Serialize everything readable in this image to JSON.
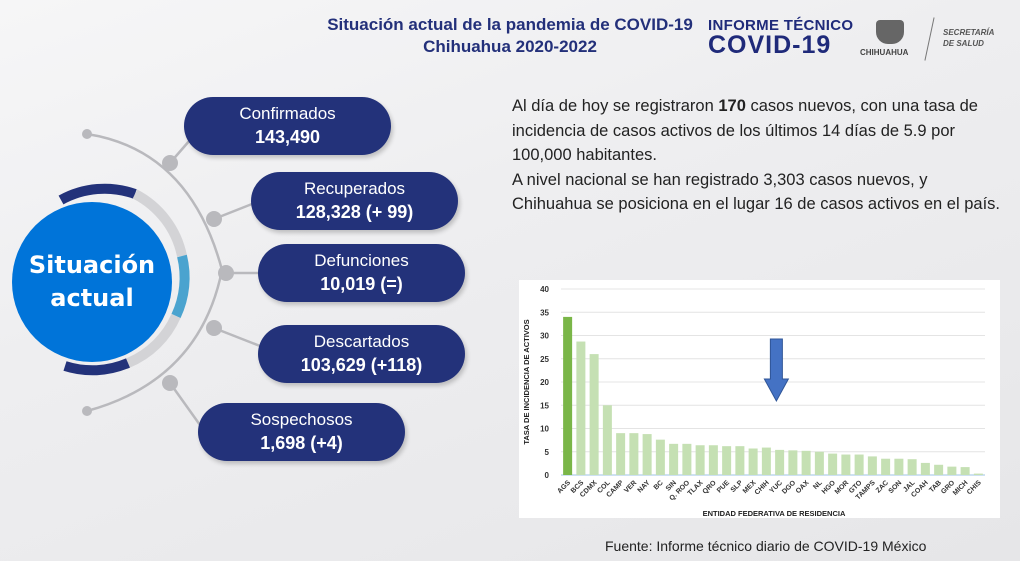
{
  "header": {
    "title_line1": "Situación actual de la pandemia de COVID-19",
    "title_line2": "Chihuahua 2020-2022",
    "logo_informe_line1": "INFORME TÉCNICO",
    "logo_informe_line2": "COVID-19",
    "logo_state": "CHIHUAHUA",
    "logo_secretaria_line1": "SECRETARÍA",
    "logo_secretaria_line2": "DE SALUD"
  },
  "situacion": {
    "title_line1": "Situación",
    "title_line2": "actual",
    "items": [
      {
        "label": "Confirmados",
        "value": "143,490"
      },
      {
        "label": "Recuperados",
        "value": "128,328 (+ 99)"
      },
      {
        "label": "Defunciones",
        "value": "10,019 (=)"
      },
      {
        "label": "Descartados",
        "value": "103,629 (+118)"
      },
      {
        "label": "Sospechosos",
        "value": "1,698 (+4)"
      }
    ]
  },
  "description": {
    "p1_pre": "Al día de hoy se registraron ",
    "p1_bold": "170",
    "p1_post": " casos nuevos, con una tasa de incidencia de casos activos de los últimos 14 días de 5.9 por 100,000 habitantes.",
    "p2": "A nivel nacional se han registrado 3,303 casos nuevos, y Chihuahua se posiciona en el lugar 16 de casos activos en el país."
  },
  "source": "Fuente: Informe técnico diario de COVID-19 México",
  "colors": {
    "navy": "#23327a",
    "blue": "#0074d9",
    "highlight_bar": "#7ab648",
    "bar": "#c5e0b3",
    "arrow": "#4472c4"
  },
  "chart_data": {
    "type": "bar",
    "xlabel": "ENTIDAD FEDERATIVA DE RESIDENCIA",
    "ylabel": "TASA DE INCIDENCIA DE ACTIVOS",
    "ylim": [
      0,
      40
    ],
    "yticks": [
      0,
      5,
      10,
      15,
      20,
      25,
      30,
      35,
      40
    ],
    "grid": true,
    "highlighted": "AGS",
    "arrow_marks": "CHIH",
    "categories": [
      "AGS",
      "BCS",
      "CDMX",
      "COL",
      "CAMP",
      "VER",
      "NAY",
      "BC",
      "SIN",
      "Q. ROO",
      "TLAX",
      "QRO",
      "PUE",
      "SLP",
      "MEX",
      "CHIH",
      "YUC",
      "DGO",
      "OAX",
      "NL",
      "HGO",
      "MOR",
      "GTO",
      "TAMPS",
      "ZAC",
      "SON",
      "JAL",
      "COAH",
      "TAB",
      "GRO",
      "MICH",
      "CHIS"
    ],
    "values": [
      34,
      28.7,
      26,
      15,
      9,
      9,
      8.8,
      7.6,
      6.7,
      6.7,
      6.4,
      6.4,
      6.2,
      6.2,
      5.7,
      5.9,
      5.4,
      5.3,
      5.2,
      5.0,
      4.6,
      4.4,
      4.4,
      4.0,
      3.5,
      3.5,
      3.4,
      2.6,
      2.2,
      1.8,
      1.7,
      0.3
    ]
  }
}
